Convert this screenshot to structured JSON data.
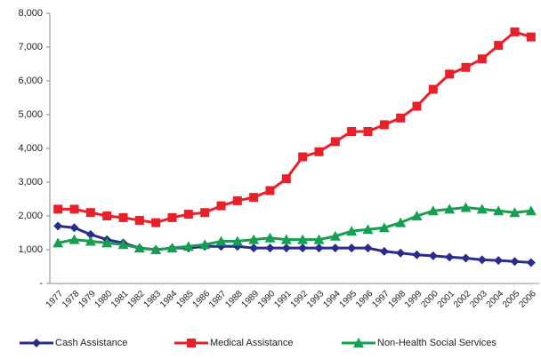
{
  "chart_data": {
    "type": "line",
    "categories": [
      "1977",
      "1978",
      "1979",
      "1980",
      "1981",
      "1982",
      "1983",
      "1984",
      "1985",
      "1986",
      "1987",
      "1988",
      "1989",
      "1990",
      "1991",
      "1992",
      "1993",
      "1994",
      "1995",
      "1996",
      "1997",
      "1998",
      "1999",
      "2000",
      "2001",
      "2002",
      "2003",
      "2004",
      "2005",
      "2006"
    ],
    "series": [
      {
        "name": "Cash Assistance",
        "color": "#2b2b8c",
        "marker": "diamond",
        "values": [
          1700,
          1650,
          1450,
          1300,
          1200,
          1050,
          1000,
          1050,
          1050,
          1100,
          1100,
          1100,
          1050,
          1050,
          1050,
          1050,
          1050,
          1050,
          1050,
          1050,
          950,
          900,
          850,
          820,
          780,
          750,
          700,
          680,
          650,
          620
        ]
      },
      {
        "name": "Medical Assistance",
        "color": "#e8202a",
        "marker": "square",
        "values": [
          2200,
          2200,
          2100,
          2000,
          1950,
          1870,
          1800,
          1950,
          2050,
          2100,
          2300,
          2450,
          2550,
          2750,
          3100,
          3750,
          3900,
          4200,
          4500,
          4500,
          4700,
          4900,
          5250,
          5750,
          6200,
          6400,
          6650,
          7050,
          7450,
          7300
        ]
      },
      {
        "name": "Non-Health Social Services",
        "color": "#14a050",
        "marker": "triangle",
        "values": [
          1200,
          1300,
          1250,
          1200,
          1150,
          1050,
          1000,
          1050,
          1100,
          1150,
          1250,
          1250,
          1300,
          1350,
          1300,
          1300,
          1300,
          1400,
          1550,
          1600,
          1650,
          1800,
          2000,
          2150,
          2200,
          2250,
          2200,
          2150,
          2100,
          2150
        ]
      }
    ],
    "ylim": [
      0,
      8000
    ],
    "yticks": [
      {
        "value": 0,
        "label": "-"
      },
      {
        "value": 1000,
        "label": "1,000"
      },
      {
        "value": 2000,
        "label": "2,000"
      },
      {
        "value": 3000,
        "label": "3,000"
      },
      {
        "value": 4000,
        "label": "4,000"
      },
      {
        "value": 5000,
        "label": "5,000"
      },
      {
        "value": 6000,
        "label": "6,000"
      },
      {
        "value": 7000,
        "label": "7,000"
      },
      {
        "value": 8000,
        "label": "8,000"
      }
    ],
    "legend": "bottom"
  }
}
